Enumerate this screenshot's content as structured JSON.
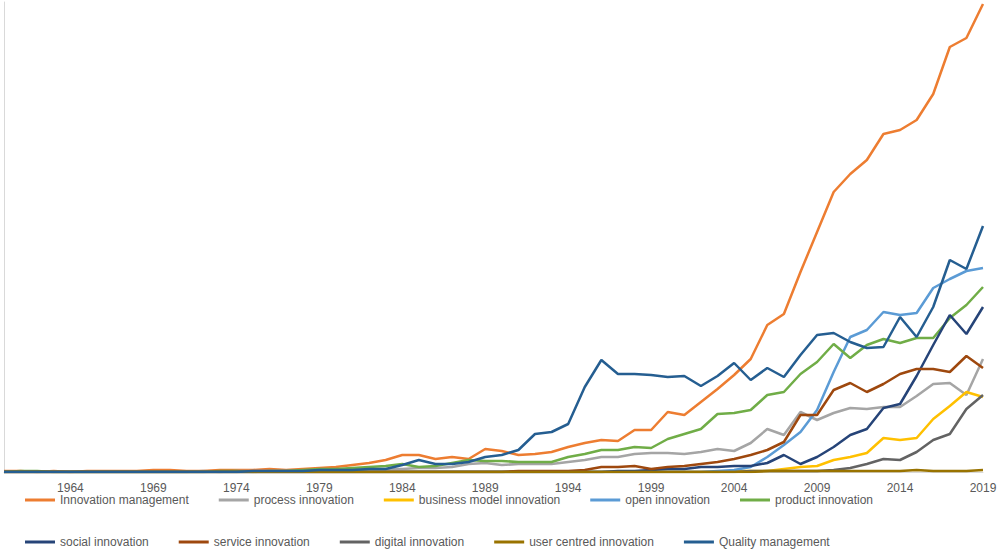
{
  "chart_data": {
    "type": "line",
    "x": [
      1960,
      1961,
      1962,
      1963,
      1964,
      1965,
      1966,
      1967,
      1968,
      1969,
      1970,
      1971,
      1972,
      1973,
      1974,
      1975,
      1976,
      1977,
      1978,
      1979,
      1980,
      1981,
      1982,
      1983,
      1984,
      1985,
      1986,
      1987,
      1988,
      1989,
      1990,
      1991,
      1992,
      1993,
      1994,
      1995,
      1996,
      1997,
      1998,
      1999,
      2000,
      2001,
      2002,
      2003,
      2004,
      2005,
      2006,
      2007,
      2008,
      2009,
      2010,
      2011,
      2012,
      2013,
      2014,
      2015,
      2016,
      2017,
      2018,
      2019
    ],
    "xlim": [
      1960,
      2019
    ],
    "xticks": [
      1964,
      1969,
      1974,
      1979,
      1984,
      1989,
      1994,
      1999,
      2004,
      2009,
      2014,
      2019
    ],
    "ylim": [
      0,
      470
    ],
    "grid": false,
    "tick_labels": "x",
    "legend": "bottom",
    "series": [
      {
        "name": "Innovation management",
        "color": "#ED7D31",
        "values": [
          1,
          1,
          0,
          1,
          0,
          1,
          1,
          1,
          1,
          2,
          2,
          1,
          1,
          2,
          2,
          2,
          3,
          2,
          3,
          4,
          5,
          7,
          9,
          12,
          17,
          17,
          13,
          15,
          13,
          23,
          21,
          17,
          18,
          20,
          25,
          29,
          32,
          31,
          42,
          42,
          60,
          57,
          70,
          83,
          97,
          113,
          147,
          158,
          200,
          240,
          280,
          298,
          312,
          338,
          342,
          352,
          378,
          425,
          434,
          468
        ]
      },
      {
        "name": "process innovation",
        "color": "#A5A5A5",
        "values": [
          0,
          0,
          0,
          0,
          0,
          0,
          0,
          0,
          0,
          0,
          0,
          0,
          1,
          0,
          1,
          1,
          1,
          1,
          1,
          2,
          2,
          2,
          3,
          3,
          3,
          4,
          4,
          5,
          8,
          9,
          7,
          8,
          8,
          8,
          10,
          12,
          15,
          15,
          18,
          19,
          19,
          18,
          20,
          23,
          21,
          29,
          43,
          37,
          60,
          52,
          59,
          64,
          63,
          65,
          65,
          76,
          88,
          89,
          77,
          113
        ]
      },
      {
        "name": "business model innovation",
        "color": "#FFC000",
        "values": [
          0,
          0,
          0,
          0,
          0,
          0,
          0,
          0,
          0,
          0,
          0,
          0,
          0,
          0,
          0,
          0,
          0,
          0,
          0,
          0,
          0,
          0,
          0,
          0,
          0,
          0,
          0,
          0,
          0,
          0,
          0,
          0,
          0,
          0,
          0,
          0,
          0,
          0,
          0,
          0,
          0,
          0,
          0,
          0,
          1,
          1,
          1,
          3,
          5,
          6,
          12,
          15,
          19,
          34,
          32,
          34,
          53,
          66,
          80,
          75
        ]
      },
      {
        "name": "open innovation",
        "color": "#5B9BD5",
        "values": [
          0,
          0,
          0,
          0,
          0,
          0,
          0,
          0,
          0,
          0,
          0,
          0,
          0,
          0,
          0,
          0,
          0,
          0,
          0,
          0,
          0,
          0,
          0,
          0,
          0,
          0,
          0,
          0,
          0,
          0,
          0,
          0,
          0,
          0,
          0,
          0,
          0,
          0,
          0,
          0,
          0,
          0,
          0,
          1,
          2,
          5,
          15,
          27,
          40,
          62,
          100,
          135,
          142,
          160,
          157,
          159,
          184,
          193,
          201,
          204
        ]
      },
      {
        "name": "product innovation",
        "color": "#70AD47",
        "values": [
          0,
          1,
          1,
          0,
          0,
          0,
          0,
          0,
          0,
          0,
          0,
          0,
          0,
          1,
          1,
          0,
          1,
          1,
          2,
          3,
          3,
          4,
          5,
          6,
          8,
          5,
          6,
          9,
          12,
          11,
          11,
          10,
          10,
          10,
          15,
          18,
          22,
          22,
          25,
          24,
          33,
          38,
          43,
          58,
          59,
          62,
          77,
          80,
          98,
          110,
          128,
          114,
          127,
          133,
          129,
          134,
          134,
          154,
          167,
          185
        ]
      },
      {
        "name": "social innovation",
        "color": "#264478",
        "values": [
          0,
          0,
          0,
          0,
          0,
          0,
          0,
          0,
          0,
          0,
          0,
          0,
          0,
          0,
          0,
          0,
          0,
          0,
          0,
          0,
          0,
          0,
          0,
          0,
          0,
          0,
          0,
          0,
          0,
          0,
          0,
          0,
          0,
          0,
          0,
          0,
          0,
          1,
          1,
          2,
          3,
          3,
          5,
          5,
          6,
          6,
          9,
          17,
          8,
          15,
          25,
          37,
          43,
          64,
          68,
          96,
          127,
          157,
          138,
          165
        ]
      },
      {
        "name": "service innovation",
        "color": "#9E480E",
        "values": [
          0,
          0,
          0,
          0,
          0,
          0,
          0,
          0,
          0,
          0,
          0,
          0,
          0,
          0,
          0,
          0,
          0,
          0,
          0,
          0,
          0,
          0,
          0,
          0,
          0,
          0,
          0,
          0,
          0,
          0,
          0,
          1,
          1,
          1,
          1,
          2,
          5,
          5,
          6,
          3,
          5,
          6,
          8,
          10,
          13,
          17,
          22,
          30,
          57,
          57,
          82,
          89,
          80,
          88,
          98,
          103,
          103,
          100,
          116,
          104
        ]
      },
      {
        "name": "digital innovation",
        "color": "#636363",
        "values": [
          0,
          0,
          0,
          0,
          0,
          0,
          0,
          0,
          0,
          0,
          0,
          0,
          0,
          0,
          0,
          0,
          0,
          0,
          0,
          0,
          0,
          0,
          0,
          0,
          0,
          0,
          0,
          0,
          0,
          0,
          0,
          0,
          0,
          0,
          0,
          0,
          0,
          0,
          0,
          0,
          0,
          0,
          0,
          0,
          0,
          1,
          1,
          1,
          1,
          1,
          2,
          4,
          8,
          13,
          12,
          20,
          32,
          38,
          63,
          77
        ]
      },
      {
        "name": "user centred innovation",
        "color": "#997300",
        "values": [
          0,
          0,
          0,
          0,
          0,
          0,
          0,
          0,
          0,
          0,
          0,
          0,
          0,
          0,
          0,
          0,
          0,
          0,
          0,
          0,
          0,
          0,
          0,
          0,
          0,
          0,
          0,
          0,
          0,
          0,
          0,
          0,
          0,
          0,
          0,
          0,
          0,
          0,
          0,
          0,
          0,
          0,
          0,
          0,
          0,
          0,
          1,
          1,
          1,
          1,
          1,
          1,
          1,
          1,
          1,
          2,
          1,
          1,
          1,
          2
        ]
      },
      {
        "name": "Quality management",
        "color": "#255E91",
        "values": [
          0,
          0,
          0,
          0,
          0,
          0,
          0,
          0,
          0,
          0,
          0,
          0,
          0,
          0,
          0,
          1,
          1,
          1,
          1,
          2,
          2,
          2,
          3,
          3,
          7,
          12,
          8,
          8,
          10,
          15,
          17,
          22,
          38,
          40,
          48,
          85,
          112,
          98,
          98,
          97,
          95,
          96,
          86,
          96,
          109,
          92,
          104,
          95,
          117,
          137,
          139,
          130,
          124,
          125,
          155,
          135,
          165,
          212,
          203,
          246
        ]
      }
    ]
  }
}
